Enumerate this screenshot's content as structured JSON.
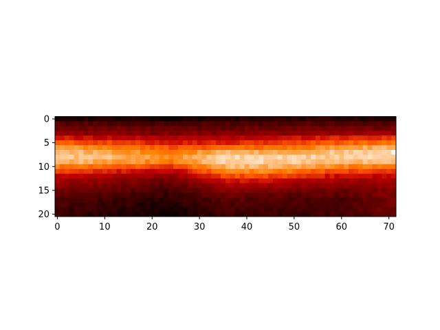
{
  "chart_data": {
    "type": "heatmap",
    "title": "",
    "xlabel": "",
    "ylabel": "",
    "colormap": "gist_heat",
    "n_cols": 72,
    "n_rows": 21,
    "x_ticks": [
      0,
      10,
      20,
      30,
      40,
      50,
      60,
      70
    ],
    "y_ticks": [
      0,
      5,
      10,
      15,
      20
    ],
    "x_tick_labels": [
      "0",
      "10",
      "20",
      "30",
      "40",
      "50",
      "60",
      "70"
    ],
    "y_tick_labels": [
      "0",
      "5",
      "10",
      "15",
      "20"
    ],
    "xlim": [
      -0.5,
      71.5
    ],
    "ylim": [
      20.5,
      -0.5
    ],
    "y_inverted": true,
    "value_range": [
      0,
      1
    ],
    "rows_sampled_every_col": [
      0,
      12,
      24,
      36,
      48,
      60,
      71
    ],
    "profile_values": [
      [
        0.1,
        0.08,
        0.04,
        0.1,
        0.12,
        0.12,
        0.08
      ],
      [
        0.22,
        0.2,
        0.18,
        0.2,
        0.22,
        0.22,
        0.2
      ],
      [
        0.3,
        0.28,
        0.26,
        0.26,
        0.28,
        0.3,
        0.3
      ],
      [
        0.38,
        0.35,
        0.33,
        0.33,
        0.36,
        0.4,
        0.4
      ],
      [
        0.55,
        0.5,
        0.46,
        0.46,
        0.52,
        0.58,
        0.6
      ],
      [
        0.68,
        0.62,
        0.56,
        0.56,
        0.62,
        0.68,
        0.72
      ],
      [
        0.8,
        0.74,
        0.66,
        0.7,
        0.72,
        0.8,
        0.85
      ],
      [
        0.88,
        0.82,
        0.74,
        0.84,
        0.82,
        0.88,
        0.95
      ],
      [
        0.9,
        0.86,
        0.78,
        0.92,
        0.9,
        0.9,
        0.92
      ],
      [
        0.86,
        0.82,
        0.74,
        0.92,
        0.9,
        0.86,
        0.86
      ],
      [
        0.74,
        0.7,
        0.62,
        0.86,
        0.84,
        0.76,
        0.74
      ],
      [
        0.62,
        0.56,
        0.48,
        0.78,
        0.74,
        0.64,
        0.6
      ],
      [
        0.5,
        0.44,
        0.36,
        0.66,
        0.62,
        0.52,
        0.5
      ],
      [
        0.42,
        0.36,
        0.28,
        0.54,
        0.5,
        0.42,
        0.42
      ],
      [
        0.36,
        0.3,
        0.22,
        0.44,
        0.4,
        0.34,
        0.36
      ],
      [
        0.3,
        0.24,
        0.18,
        0.36,
        0.3,
        0.28,
        0.34
      ],
      [
        0.24,
        0.2,
        0.14,
        0.28,
        0.24,
        0.24,
        0.32
      ],
      [
        0.2,
        0.16,
        0.1,
        0.24,
        0.2,
        0.2,
        0.3
      ],
      [
        0.18,
        0.14,
        0.08,
        0.2,
        0.18,
        0.2,
        0.3
      ],
      [
        0.16,
        0.12,
        0.06,
        0.18,
        0.16,
        0.18,
        0.3
      ],
      [
        0.14,
        0.1,
        0.04,
        0.16,
        0.14,
        0.18,
        0.28
      ]
    ]
  }
}
